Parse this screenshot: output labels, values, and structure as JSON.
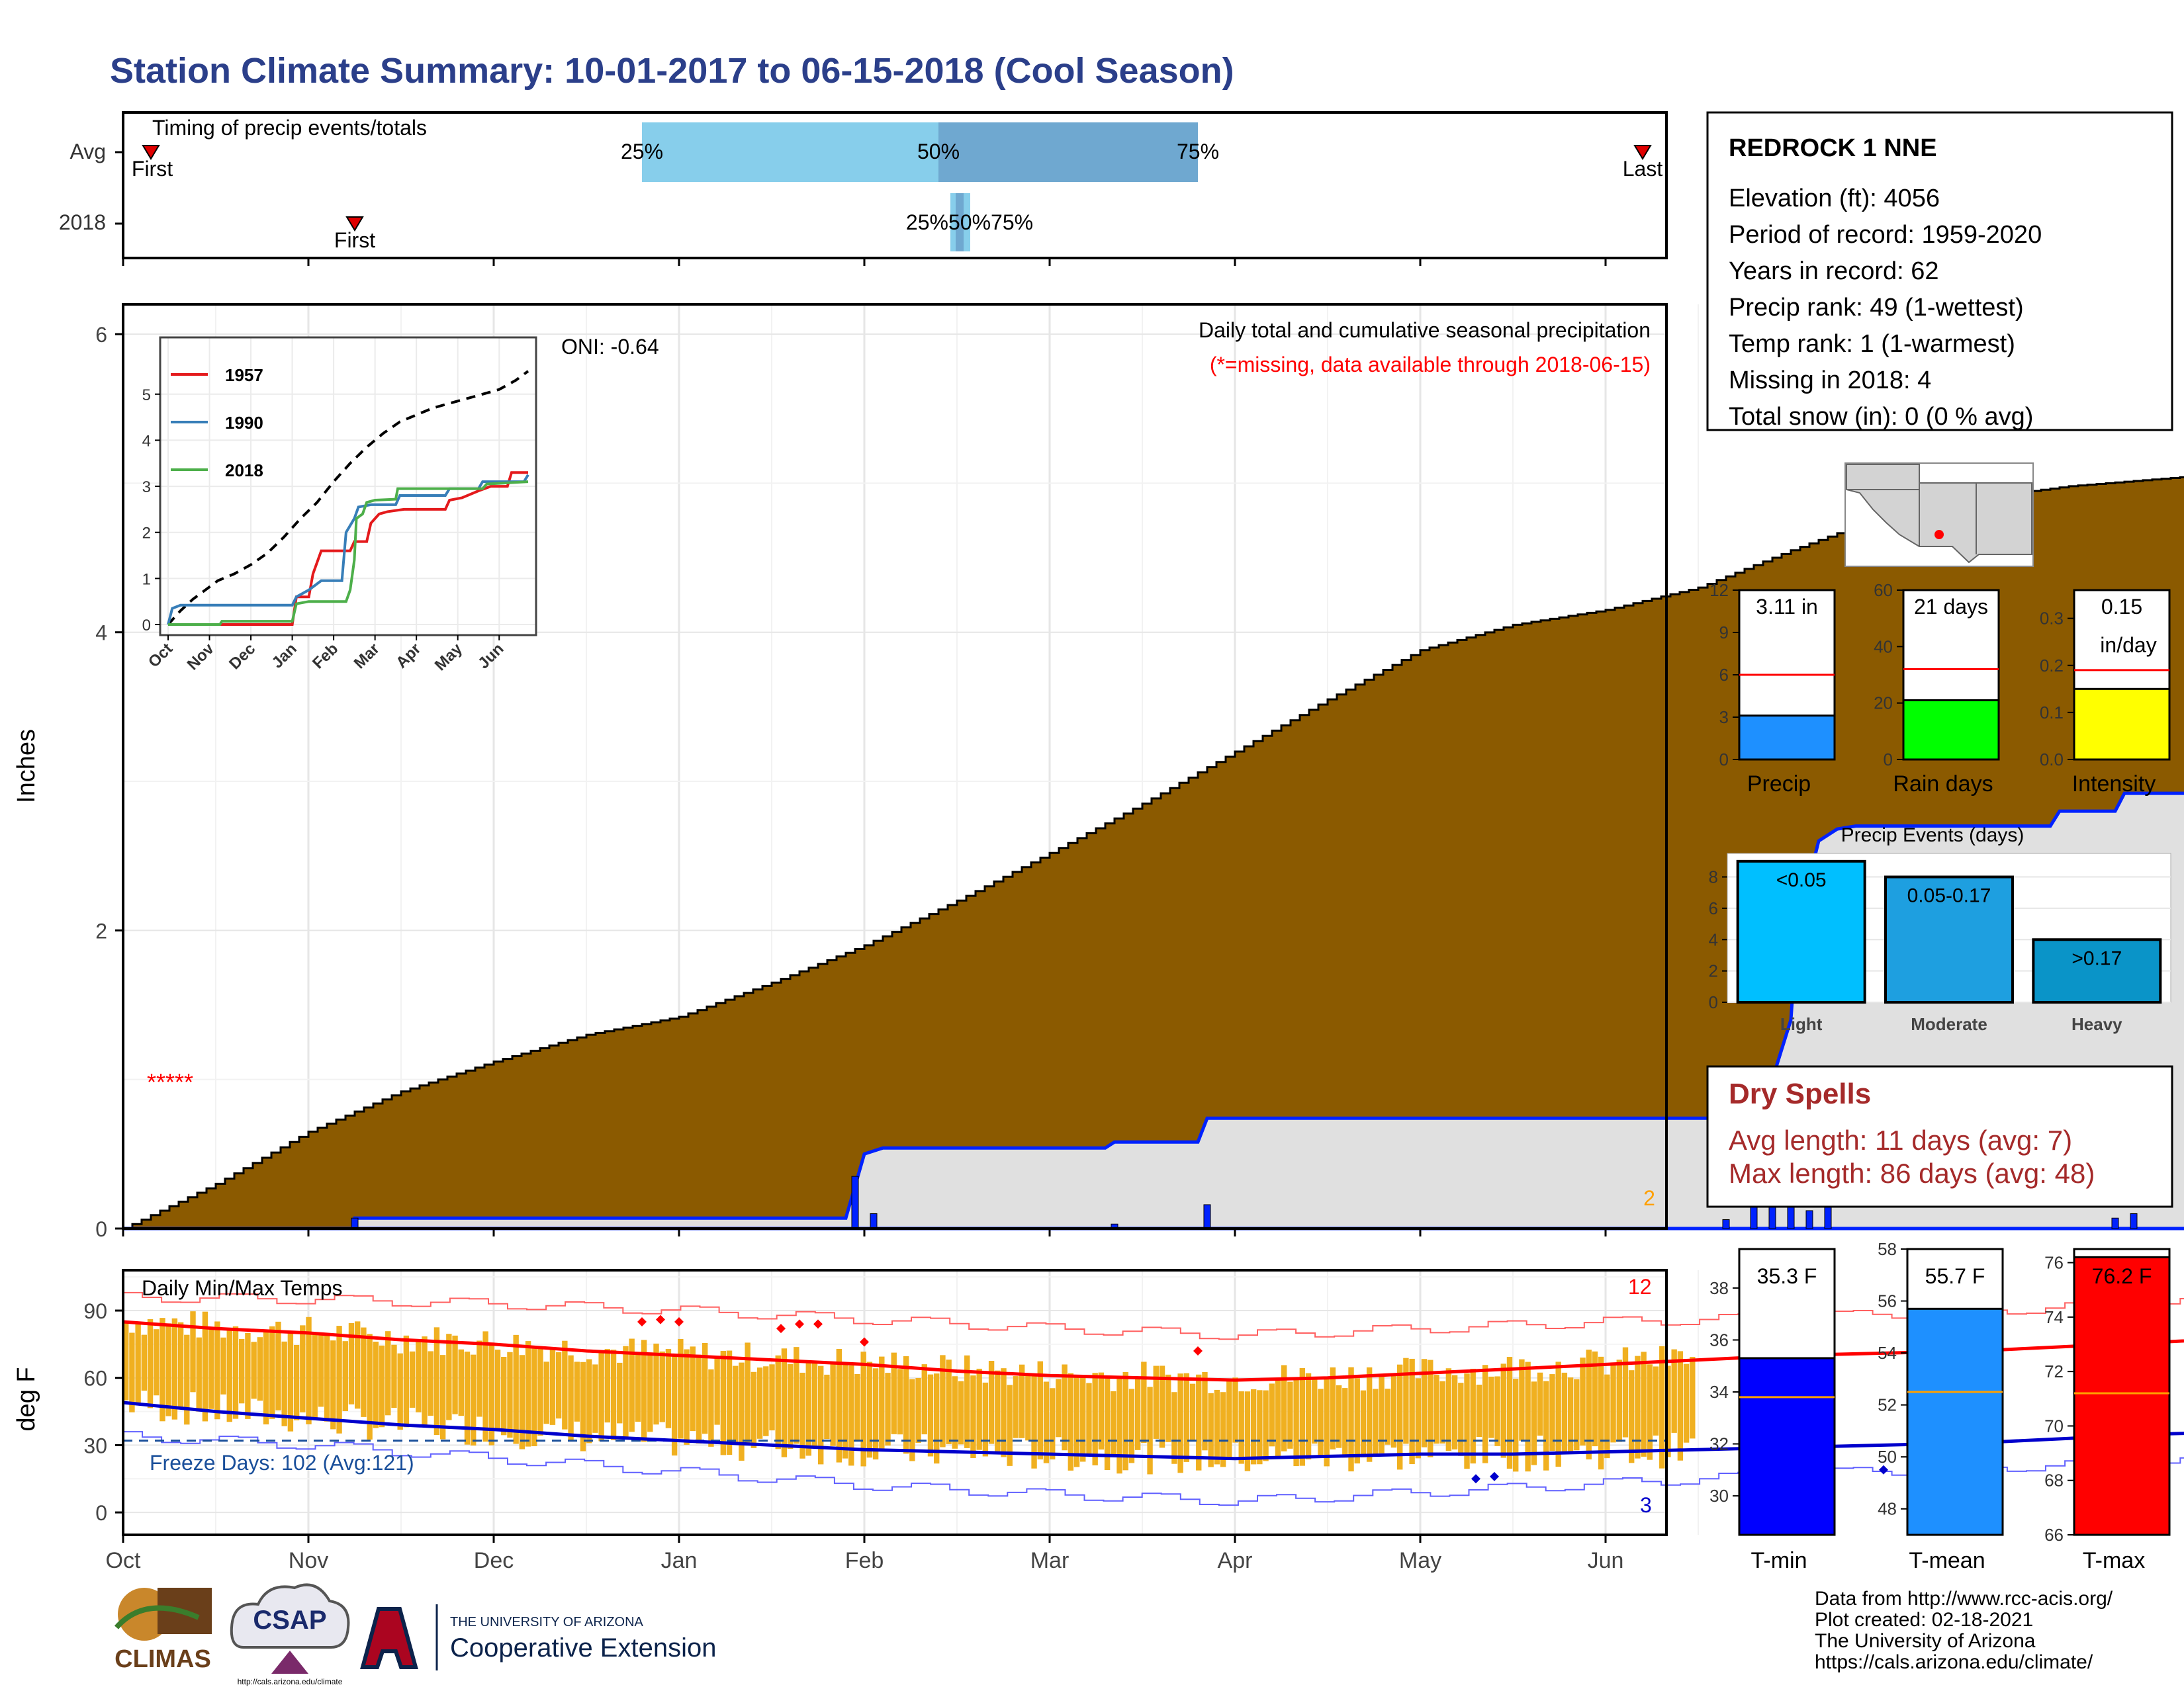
{
  "title": "Station Climate Summary: 10-01-2017 to 06-15-2018 (Cool Season)",
  "colors": {
    "title": "#2b3f8a",
    "cum": "#8b5a00",
    "daily": "#0022ff",
    "gray": "#e0e0e0",
    "orange": "#ffa000",
    "tempbar": "#f0b020",
    "maxline": "#ff0000",
    "minline": "#0000cc",
    "precipbar": "#1e90ff",
    "raindaysbar": "#00ff00",
    "intensitybar": "#ffff00",
    "light": "#00bfff",
    "moderate": "#1e9fe0",
    "heavy": "#0a94c8",
    "tminbar": "#0000ff",
    "tmeanbar": "#1e90ff",
    "tmaxbar": "#ff0000",
    "dryspell": "#a52a2a"
  },
  "timing": {
    "title": "Timing of precip events/totals",
    "rows": [
      "Avg",
      "2018"
    ],
    "first_label": "First",
    "last_label": "Last",
    "avg": {
      "first_month": 0.15,
      "q25": 2.8,
      "q50": 4.4,
      "q75": 5.8,
      "last_month": 8.2
    },
    "y2018": {
      "first_month": 1.25,
      "q25": 4.5,
      "q50": 4.55,
      "q75": 4.6,
      "last_month": 8.8
    },
    "q_labels": [
      "25%",
      "50%",
      "75%"
    ],
    "y2018_label": "25%50%75%"
  },
  "main": {
    "subtitle": "Daily total and cumulative seasonal precipitation",
    "missing_note": "(*=missing, data available through 2018-06-15)",
    "oni": "ONI: -0.64",
    "ylabel": "Inches",
    "yticks": [
      "0",
      "2",
      "4",
      "6"
    ],
    "ylim": [
      0,
      6.2
    ],
    "count_label": "2",
    "missing_marker": "*****",
    "cum_avg": [
      [
        0,
        0
      ],
      [
        0.5,
        0.3
      ],
      [
        1,
        0.65
      ],
      [
        1.5,
        0.92
      ],
      [
        2,
        1.12
      ],
      [
        2.5,
        1.3
      ],
      [
        3,
        1.42
      ],
      [
        3.5,
        1.65
      ],
      [
        4,
        1.9
      ],
      [
        4.5,
        2.2
      ],
      [
        5,
        2.52
      ],
      [
        5.5,
        2.85
      ],
      [
        6,
        3.2
      ],
      [
        6.5,
        3.55
      ],
      [
        7,
        3.88
      ],
      [
        7.5,
        4.05
      ],
      [
        8,
        4.15
      ],
      [
        8.5,
        4.3
      ],
      [
        9,
        4.55
      ],
      [
        9.5,
        4.78
      ],
      [
        10,
        4.9
      ],
      [
        10.5,
        4.98
      ],
      [
        11,
        5.03
      ],
      [
        11.5,
        5.08
      ],
      [
        12,
        5.16
      ],
      [
        12.5,
        5.22
      ],
      [
        13,
        5.3
      ],
      [
        13.5,
        5.36
      ],
      [
        14,
        5.45
      ],
      [
        14.5,
        5.52
      ],
      [
        15,
        5.58
      ],
      [
        15.5,
        5.63
      ],
      [
        16,
        5.67
      ],
      [
        16.5,
        5.7
      ]
    ],
    "cum_2018": [
      [
        0,
        0
      ],
      [
        1.25,
        0
      ],
      [
        1.25,
        0.07
      ],
      [
        3.9,
        0.07
      ],
      [
        4.0,
        0.5
      ],
      [
        4.1,
        0.54
      ],
      [
        5.3,
        0.54
      ],
      [
        5.35,
        0.58
      ],
      [
        5.8,
        0.58
      ],
      [
        5.85,
        0.74
      ],
      [
        8.6,
        0.74
      ],
      [
        8.65,
        0.8
      ],
      [
        8.85,
        0.8
      ],
      [
        9.0,
        1.4
      ],
      [
        9.05,
        2.3
      ],
      [
        9.1,
        2.35
      ],
      [
        9.15,
        2.6
      ],
      [
        9.25,
        2.68
      ],
      [
        9.35,
        2.7
      ],
      [
        10.4,
        2.7
      ],
      [
        10.45,
        2.8
      ],
      [
        10.75,
        2.8
      ],
      [
        10.8,
        2.92
      ],
      [
        16.15,
        2.92
      ],
      [
        16.2,
        3.07
      ],
      [
        16.5,
        3.1
      ]
    ],
    "daily_bars": [
      [
        1.25,
        0.07
      ],
      [
        3.95,
        0.35
      ],
      [
        4.05,
        0.1
      ],
      [
        5.35,
        0.03
      ],
      [
        5.85,
        0.16
      ],
      [
        8.65,
        0.06
      ],
      [
        8.8,
        0.45
      ],
      [
        8.9,
        0.75
      ],
      [
        9.0,
        0.35
      ],
      [
        9.1,
        0.12
      ],
      [
        9.2,
        0.25
      ],
      [
        10.75,
        0.07
      ],
      [
        10.85,
        0.1
      ],
      [
        16.15,
        0.15
      ]
    ],
    "orange_points": [
      [
        8.9,
        0.78
      ],
      [
        9.2,
        0.32
      ]
    ]
  },
  "inset": {
    "legend": [
      "1957",
      "1990",
      "2018"
    ],
    "legend_colors": [
      "#e41a1c",
      "#377eb8",
      "#4daf4a"
    ],
    "yticks": [
      "0",
      "1",
      "2",
      "3",
      "4",
      "5"
    ],
    "xticks": [
      "Oct",
      "Nov",
      "Dec",
      "Jan",
      "Feb",
      "Mar",
      "Apr",
      "May",
      "Jun"
    ],
    "avg": [
      [
        0,
        0
      ],
      [
        0.3,
        0.3
      ],
      [
        0.6,
        0.55
      ],
      [
        0.9,
        0.75
      ],
      [
        1.2,
        0.95
      ],
      [
        1.6,
        1.1
      ],
      [
        2,
        1.3
      ],
      [
        2.4,
        1.55
      ],
      [
        2.8,
        1.9
      ],
      [
        3.2,
        2.3
      ],
      [
        3.6,
        2.65
      ],
      [
        4,
        3.1
      ],
      [
        4.4,
        3.5
      ],
      [
        4.8,
        3.85
      ],
      [
        5.2,
        4.15
      ],
      [
        5.6,
        4.4
      ],
      [
        6,
        4.55
      ],
      [
        6.4,
        4.7
      ],
      [
        6.8,
        4.8
      ],
      [
        7.2,
        4.9
      ],
      [
        7.6,
        5.0
      ],
      [
        8,
        5.1
      ],
      [
        8.4,
        5.3
      ],
      [
        8.7,
        5.5
      ]
    ],
    "s1957": [
      [
        0,
        0
      ],
      [
        3,
        0
      ],
      [
        3.1,
        0.6
      ],
      [
        3.4,
        0.6
      ],
      [
        3.5,
        1.1
      ],
      [
        3.7,
        1.6
      ],
      [
        4.4,
        1.6
      ],
      [
        4.5,
        1.8
      ],
      [
        4.8,
        1.8
      ],
      [
        4.9,
        2.2
      ],
      [
        5.1,
        2.4
      ],
      [
        5.3,
        2.45
      ],
      [
        5.7,
        2.5
      ],
      [
        6.7,
        2.5
      ],
      [
        6.8,
        2.7
      ],
      [
        7.1,
        2.75
      ],
      [
        7.5,
        2.9
      ],
      [
        7.8,
        3.0
      ],
      [
        8.2,
        3.0
      ],
      [
        8.3,
        3.3
      ],
      [
        8.7,
        3.3
      ]
    ],
    "s1990": [
      [
        0,
        0
      ],
      [
        0.1,
        0.35
      ],
      [
        0.3,
        0.42
      ],
      [
        3.0,
        0.42
      ],
      [
        3.1,
        0.6
      ],
      [
        3.4,
        0.75
      ],
      [
        3.7,
        0.95
      ],
      [
        4.2,
        0.95
      ],
      [
        4.3,
        2.0
      ],
      [
        4.5,
        2.3
      ],
      [
        4.6,
        2.55
      ],
      [
        4.9,
        2.6
      ],
      [
        5.5,
        2.6
      ],
      [
        5.6,
        2.8
      ],
      [
        6.7,
        2.8
      ],
      [
        6.8,
        2.95
      ],
      [
        7.5,
        2.95
      ],
      [
        7.6,
        3.1
      ],
      [
        8.6,
        3.1
      ],
      [
        8.7,
        3.25
      ]
    ],
    "s2018": [
      [
        0,
        0
      ],
      [
        1.25,
        0
      ],
      [
        1.3,
        0.07
      ],
      [
        3.0,
        0.07
      ],
      [
        3.1,
        0.45
      ],
      [
        3.4,
        0.5
      ],
      [
        4.3,
        0.5
      ],
      [
        4.4,
        0.75
      ],
      [
        4.5,
        1.4
      ],
      [
        4.55,
        2.3
      ],
      [
        4.7,
        2.4
      ],
      [
        4.8,
        2.65
      ],
      [
        5.0,
        2.7
      ],
      [
        5.5,
        2.72
      ],
      [
        5.55,
        2.95
      ],
      [
        7.6,
        2.95
      ],
      [
        7.7,
        3.05
      ],
      [
        8.7,
        3.1
      ]
    ]
  },
  "temps": {
    "title": "Daily Min/Max Temps",
    "ylabel": "deg F",
    "yticks": [
      "0",
      "30",
      "60",
      "90"
    ],
    "ylim": [
      -10,
      108
    ],
    "freeze": "Freeze Days: 102 (Avg:121)",
    "max_count": "12",
    "min_count": "3",
    "avg_max": [
      [
        0,
        85
      ],
      [
        0.5,
        82
      ],
      [
        1,
        80
      ],
      [
        1.5,
        77
      ],
      [
        2,
        75
      ],
      [
        2.5,
        72
      ],
      [
        3,
        70
      ],
      [
        3.5,
        68
      ],
      [
        4,
        66
      ],
      [
        4.5,
        63
      ],
      [
        5,
        61
      ],
      [
        5.5,
        60
      ],
      [
        6,
        59
      ],
      [
        6.5,
        60
      ],
      [
        7,
        62
      ],
      [
        7.5,
        64
      ],
      [
        8,
        66
      ],
      [
        8.5,
        68
      ],
      [
        9,
        70
      ],
      [
        9.5,
        71
      ],
      [
        10,
        72
      ],
      [
        10.5,
        74
      ],
      [
        11,
        76
      ],
      [
        11.5,
        78
      ],
      [
        12,
        79
      ],
      [
        12.5,
        80
      ],
      [
        13,
        81
      ],
      [
        13.5,
        83
      ],
      [
        14,
        84
      ],
      [
        14.5,
        85
      ],
      [
        15,
        87
      ],
      [
        15.5,
        89
      ],
      [
        16,
        91
      ],
      [
        16.5,
        93
      ]
    ],
    "avg_min": [
      [
        0,
        49
      ],
      [
        0.5,
        45
      ],
      [
        1,
        42
      ],
      [
        1.5,
        39
      ],
      [
        2,
        37
      ],
      [
        2.5,
        34
      ],
      [
        3,
        32
      ],
      [
        3.5,
        30
      ],
      [
        4,
        28
      ],
      [
        4.5,
        27
      ],
      [
        5,
        26
      ],
      [
        5.5,
        25
      ],
      [
        6,
        24
      ],
      [
        6.5,
        25
      ],
      [
        7,
        26
      ],
      [
        7.5,
        26
      ],
      [
        8,
        27
      ],
      [
        8.5,
        28
      ],
      [
        9,
        29
      ],
      [
        9.5,
        30
      ],
      [
        10,
        31
      ],
      [
        10.5,
        33
      ],
      [
        11,
        35
      ],
      [
        11.5,
        36
      ],
      [
        12,
        38
      ],
      [
        12.5,
        40
      ],
      [
        13,
        42
      ],
      [
        13.5,
        44
      ],
      [
        14,
        46
      ],
      [
        14.5,
        48
      ],
      [
        15,
        50
      ],
      [
        15.5,
        51
      ],
      [
        16,
        52
      ],
      [
        16.5,
        53
      ]
    ],
    "record_max": [
      [
        0,
        96
      ],
      [
        1,
        95
      ],
      [
        2,
        93
      ],
      [
        3,
        90
      ],
      [
        4,
        86
      ],
      [
        5,
        82
      ],
      [
        6,
        79
      ],
      [
        7,
        82
      ],
      [
        8,
        85
      ],
      [
        9,
        87
      ],
      [
        10,
        90
      ],
      [
        11,
        93
      ],
      [
        12,
        96
      ],
      [
        13,
        98
      ],
      [
        14,
        101
      ],
      [
        15,
        103
      ],
      [
        16,
        105
      ],
      [
        16.5,
        105
      ]
    ],
    "record_min": [
      [
        0,
        34
      ],
      [
        1,
        30
      ],
      [
        2,
        24
      ],
      [
        3,
        18
      ],
      [
        4,
        12
      ],
      [
        5,
        8
      ],
      [
        6,
        5
      ],
      [
        7,
        9
      ],
      [
        8,
        13
      ],
      [
        9,
        17
      ],
      [
        10,
        20
      ],
      [
        11,
        22
      ],
      [
        12,
        25
      ],
      [
        13,
        30
      ],
      [
        14,
        34
      ],
      [
        15,
        38
      ],
      [
        16,
        42
      ],
      [
        16.5,
        44
      ]
    ],
    "record_points_max": [
      [
        2.8,
        85
      ],
      [
        2.9,
        86
      ],
      [
        3.0,
        85
      ],
      [
        3.55,
        82
      ],
      [
        3.65,
        84
      ],
      [
        3.75,
        84
      ],
      [
        4.0,
        76
      ],
      [
        5.8,
        72
      ],
      [
        14.5,
        93
      ],
      [
        14.6,
        93
      ],
      [
        16.1,
        91
      ]
    ],
    "record_points_min": [
      [
        7.3,
        15
      ],
      [
        7.4,
        16
      ],
      [
        9.5,
        19
      ]
    ]
  },
  "station": {
    "name": "REDROCK 1 NNE",
    "lines": [
      "Elevation (ft): 4056",
      "Period of record: 1959-2020",
      "Years in record: 62",
      "Precip rank: 49 (1-wettest)",
      "Temp rank: 1 (1-warmest)",
      "Missing in 2018: 4",
      "Total snow (in): 0 (0 % avg)"
    ]
  },
  "summary_bars": [
    {
      "label": "Precip",
      "value_label": "3.11 in",
      "value": 3.11,
      "avg": 6.0,
      "max": 12,
      "yticks": [
        "0",
        "3",
        "6",
        "9",
        "12"
      ]
    },
    {
      "label": "Rain days",
      "value_label": "21 days",
      "value": 21,
      "avg": 32,
      "max": 60,
      "yticks": [
        "0",
        "20",
        "40",
        "60"
      ]
    },
    {
      "label": "Intensity",
      "value_label": "0.15",
      "value_label2": "in/day",
      "value": 0.15,
      "avg": 0.19,
      "max": 0.36,
      "yticks": [
        "0.0",
        "0.1",
        "0.2",
        "0.3"
      ]
    }
  ],
  "events": {
    "title": "Precip Events (days)",
    "categories": [
      "Light",
      "Moderate",
      "Heavy"
    ],
    "labels": [
      "<0.05",
      "0.05-0.17",
      ">0.17"
    ],
    "values": [
      9,
      8,
      4
    ],
    "yticks": [
      "0",
      "2",
      "4",
      "6",
      "8"
    ],
    "ylim": [
      0,
      9.5
    ]
  },
  "dryspells": {
    "title": "Dry Spells",
    "avg": "Avg length: 11 days (avg: 7)",
    "max": "Max length: 86 days (avg: 48)"
  },
  "temp_bars": [
    {
      "label": "T-min",
      "value_label": "35.3 F",
      "value": 35.3,
      "avg": 33.8,
      "ylim": [
        28.5,
        39.5
      ],
      "yticks": [
        "30",
        "32",
        "34",
        "36",
        "38"
      ]
    },
    {
      "label": "T-mean",
      "value_label": "55.7 F",
      "value": 55.7,
      "avg": 52.5,
      "ylim": [
        47,
        58
      ],
      "yticks": [
        "48",
        "50",
        "52",
        "54",
        "56",
        "58"
      ]
    },
    {
      "label": "T-max",
      "value_label": "76.2 F",
      "value": 76.2,
      "avg": 71.2,
      "ylim": [
        66,
        76.5
      ],
      "yticks": [
        "66",
        "68",
        "70",
        "72",
        "74",
        "76"
      ]
    }
  ],
  "months": [
    "Oct",
    "Nov",
    "Dec",
    "Jan",
    "Feb",
    "Mar",
    "Apr",
    "May",
    "Jun"
  ],
  "footer": {
    "lines": [
      "Data from http://www.rcc-acis.org/",
      "Plot created: 02-18-2021",
      "The University of Arizona",
      "https://cals.arizona.edu/climate/"
    ],
    "climas": "CLIMAS",
    "csap": "CSAP",
    "csap_url": "http://cals.arizona.edu/climate",
    "ua_small": "THE UNIVERSITY OF ARIZONA",
    "ua_big": "Cooperative Extension"
  }
}
